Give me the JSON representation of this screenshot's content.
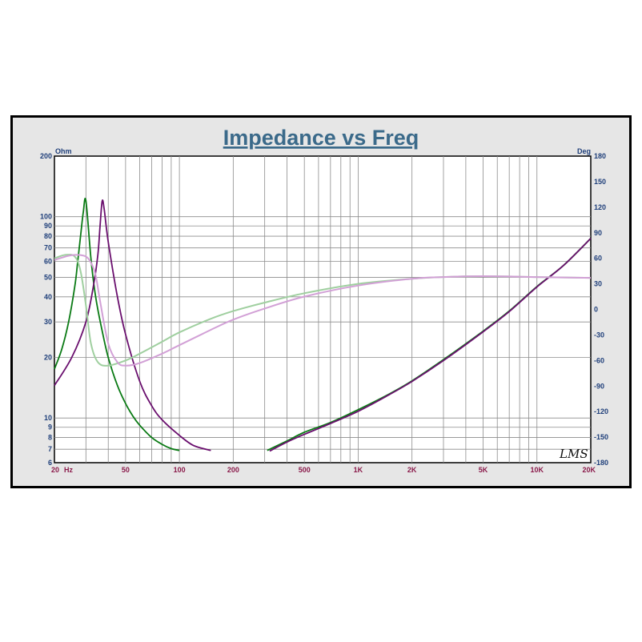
{
  "chart_data": {
    "type": "line",
    "title": "Impedance vs Freq",
    "left_axis": {
      "unit": "Ohm",
      "scale": "log",
      "range": [
        6,
        200
      ],
      "tick_labels": [
        "200",
        "100",
        "90",
        "80",
        "70",
        "60",
        "50",
        "40",
        "30",
        "20",
        "10",
        "9",
        "8",
        "7",
        "6"
      ]
    },
    "right_axis": {
      "unit": "Deg",
      "scale": "linear",
      "range": [
        -180,
        180
      ],
      "tick_labels": [
        "180",
        "150",
        "120",
        "90",
        "60",
        "30",
        "0",
        "-30",
        "-60",
        "-90",
        "-120",
        "-150",
        "-180"
      ]
    },
    "x_axis": {
      "scale": "log",
      "range": [
        20,
        20000
      ],
      "unit": "Hz",
      "tick_labels": [
        "20",
        "50",
        "100",
        "200",
        "500",
        "1K",
        "2K",
        "5K",
        "10K",
        "20K"
      ]
    },
    "grid": true,
    "watermark": "LMS",
    "series": [
      {
        "color": "#0a7a14",
        "axis": "left",
        "segments": [
          {
            "x": [
              20,
              22,
              24,
              26,
              27,
              28,
              29,
              30,
              32,
              34,
              37,
              40,
              45,
              50,
              55,
              60,
              70,
              80,
              90,
              100
            ],
            "y": [
              17.5,
              22,
              30,
              45,
              60,
              80,
              105,
              120,
              62,
              40,
              27,
              20,
              14.5,
              11.8,
              10.2,
              9.2,
              8.0,
              7.4,
              7.05,
              6.9
            ]
          },
          {
            "x": [
              310,
              400,
              500,
              700,
              1000,
              1500,
              2000,
              3000,
              5000,
              7000,
              10000,
              14000,
              20000
            ],
            "y": [
              6.9,
              7.7,
              8.5,
              9.5,
              11.0,
              13.2,
              15.3,
              19.5,
              27,
              34,
              45,
              57,
              78
            ]
          }
        ]
      },
      {
        "color": "#6a0f6e",
        "axis": "left",
        "segments": [
          {
            "x": [
              20,
              25,
              30,
              33,
              35,
              36,
              37,
              38,
              40,
              45,
              50,
              60,
              70,
              80,
              100,
              120,
              150
            ],
            "y": [
              14.5,
              20,
              30,
              45,
              65,
              90,
              120,
              108,
              75,
              40,
              26,
              15.2,
              11.5,
              9.8,
              8.2,
              7.3,
              6.9
            ]
          },
          {
            "x": [
              320,
              400,
              500,
              700,
              1000,
              1500,
              2000,
              3000,
              5000,
              7000,
              10000,
              14000,
              20000
            ],
            "y": [
              6.85,
              7.6,
              8.3,
              9.4,
              10.8,
              13.1,
              15.2,
              19.3,
              26.8,
              33.8,
              44.8,
              57,
              78
            ]
          }
        ]
      },
      {
        "color": "#9fcf9f",
        "axis": "right",
        "segments": [
          {
            "x": [
              20,
              23,
              26,
              28,
              30,
              32,
              35,
              40,
              50,
              60,
              80,
              100,
              150,
              200,
              300,
              500,
              1000,
              2000,
              3000,
              5000,
              10000,
              20000
            ],
            "y": [
              60,
              64,
              62,
              45,
              5,
              -40,
              -62,
              -66,
              -60,
              -52,
              -38,
              -27,
              -11,
              -2,
              8,
              19,
              30,
              36,
              38,
              39,
              38,
              37
            ]
          }
        ]
      },
      {
        "color": "#d2a0d6",
        "axis": "right",
        "segments": [
          {
            "x": [
              20,
              24,
              27,
              30,
              32,
              34,
              36,
              40,
              45,
              50,
              60,
              80,
              100,
              150,
              200,
              300,
              500,
              1000,
              2000,
              3000,
              5000,
              10000,
              20000
            ],
            "y": [
              58,
              63,
              64,
              62,
              55,
              40,
              10,
              -40,
              -62,
              -66,
              -63,
              -52,
              -42,
              -24,
              -12,
              1,
              15,
              28,
              36,
              38,
              39,
              38,
              37
            ]
          }
        ]
      }
    ]
  }
}
